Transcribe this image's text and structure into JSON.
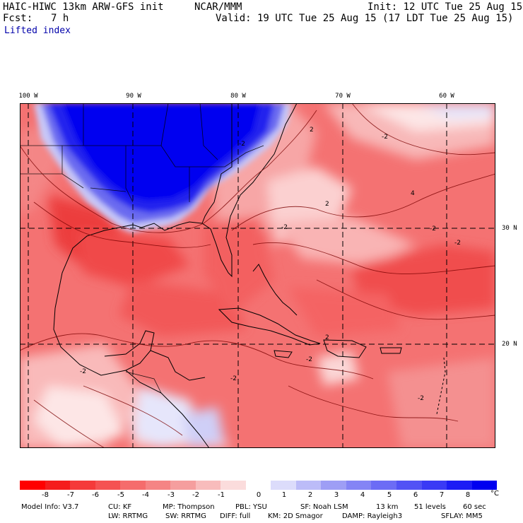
{
  "header": {
    "model": "HAIC-HIWC 13km ARW-GFS init",
    "org": "NCAR/MMM",
    "init": "Init: 12 UTC Tue 25 Aug 15",
    "fcst_label": "Fcst:",
    "fcst_value": "7 h",
    "valid": "Valid: 19 UTC Tue 25 Aug 15 (17 LDT Tue 25 Aug 15)",
    "field": "Lifted index"
  },
  "map": {
    "lon_labels": [
      "100 W",
      "90 W",
      "80 W",
      "70 W",
      "60 W"
    ],
    "lat_labels": [
      "30 N",
      "20 N"
    ],
    "contour_labels": [
      "2",
      "-2",
      "2",
      "4",
      "-2",
      "-2",
      "-2",
      "-2",
      "-2",
      "2",
      "-2",
      "-2",
      "-2"
    ]
  },
  "colorbar": {
    "ticks": [
      "-8",
      "-7",
      "-6",
      "-5",
      "-4",
      "-3",
      "-2",
      "-1",
      "0",
      "1",
      "2",
      "3",
      "4",
      "5",
      "6",
      "7",
      "8"
    ],
    "unit": "°C",
    "colors": [
      "#ff0000",
      "#f51c1c",
      "#f53a3a",
      "#f55252",
      "#f56c6c",
      "#f58484",
      "#f59e9e",
      "#f8bcbc",
      "#fbdcdc",
      "#ffffff",
      "#dcdcfb",
      "#bcbcf8",
      "#9e9ef5",
      "#8484f5",
      "#6c6cf5",
      "#5252f5",
      "#3a3af5",
      "#1c1cf5",
      "#0000f0"
    ]
  },
  "model_info": {
    "line1": [
      "Model Info: V3.7",
      "CU: KF",
      "MP: Thompson",
      "PBL: YSU",
      "SF: Noah LSM",
      "13 km",
      "51 levels",
      "60 sec"
    ],
    "line2": [
      "LW: RRTMG",
      "SW: RRTMG",
      "DIFF: full",
      "KM: 2D Smagor",
      "DAMP: Rayleigh3",
      "SFLAY: MM5"
    ]
  }
}
